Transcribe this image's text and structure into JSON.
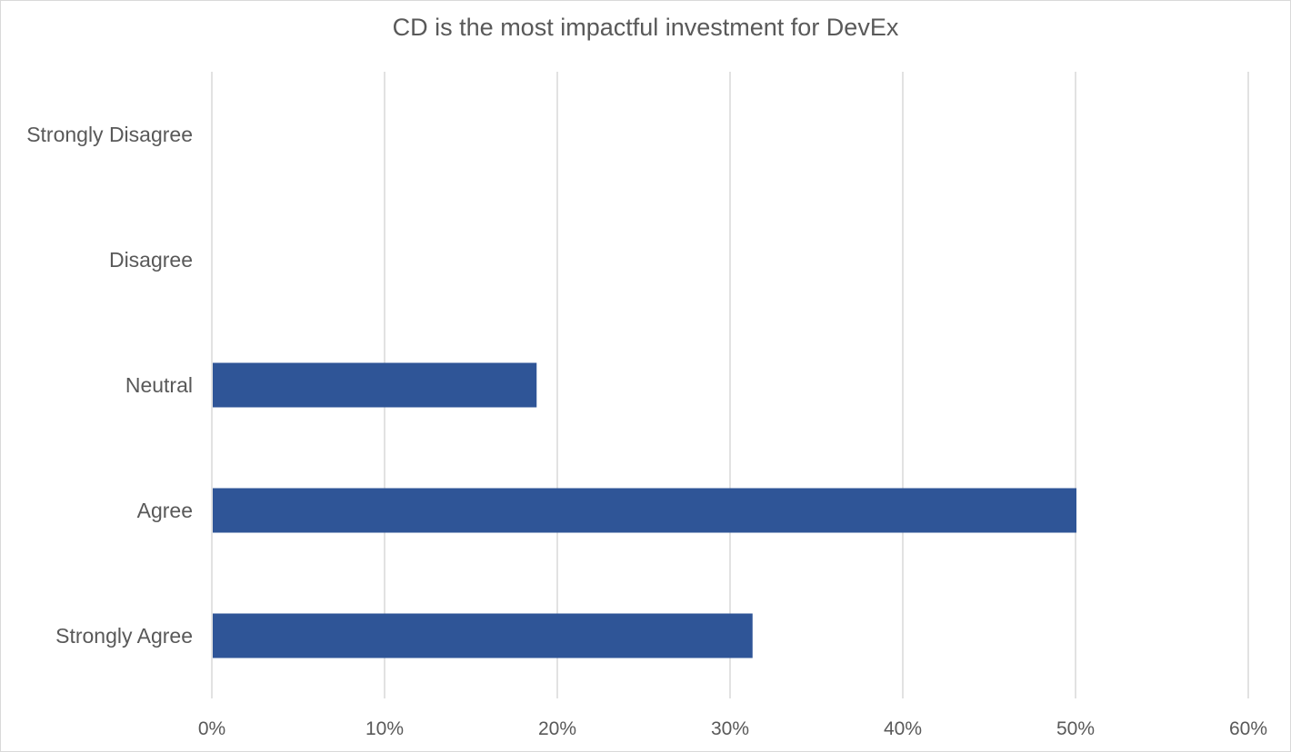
{
  "chart_data": {
    "type": "bar",
    "orientation": "horizontal",
    "title": "CD is the most impactful investment for DevEx",
    "categories": [
      "Strongly Disagree",
      "Disagree",
      "Neutral",
      "Agree",
      "Strongly Agree"
    ],
    "values": [
      0,
      0,
      18.75,
      50,
      31.25
    ],
    "value_unit": "%",
    "xlim": [
      0,
      60
    ],
    "x_ticks": [
      0,
      10,
      20,
      30,
      40,
      50,
      60
    ],
    "x_tick_labels": [
      "0%",
      "10%",
      "20%",
      "30%",
      "40%",
      "50%",
      "60%"
    ],
    "grid": true,
    "legend": "none",
    "bar_color": "#2f5597",
    "grid_color": "#d9d9d9",
    "text_color": "#595959"
  }
}
